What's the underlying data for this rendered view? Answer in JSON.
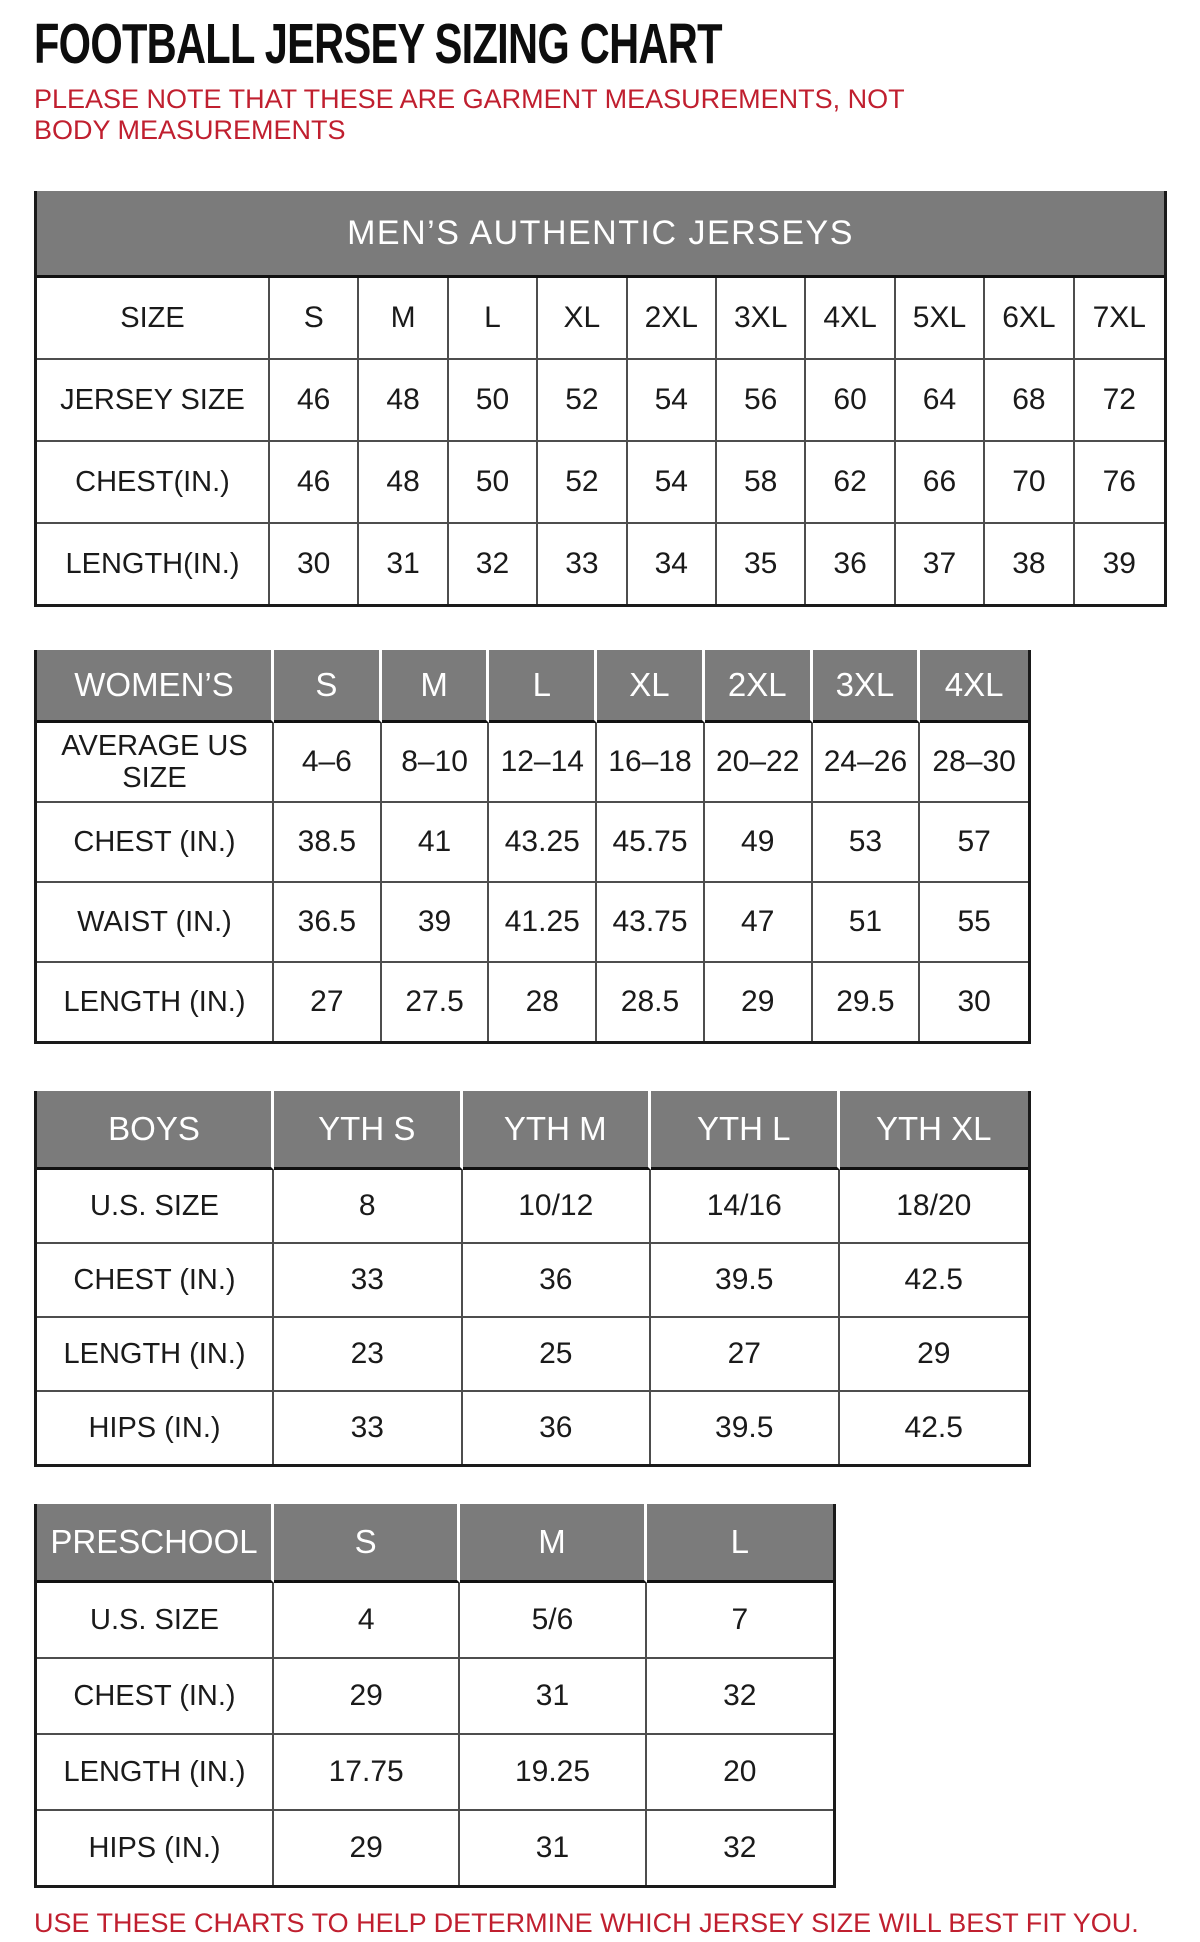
{
  "page": {
    "title": "FOOTBALL JERSEY SIZING CHART",
    "note": "PLEASE NOTE THAT THESE ARE GARMENT MEASUREMENTS, NOT BODY MEASUREMENTS",
    "footer": "USE THESE CHARTS TO HELP DETERMINE WHICH JERSEY SIZE WILL BEST FIT YOU.",
    "colors": {
      "accent_red": "#c01f2f",
      "header_gray": "#7b7b7b",
      "header_text": "#ffffff",
      "border_dark": "#1a1a1a"
    }
  },
  "tables": {
    "mens": {
      "banner": "MEN’S AUTHENTIC JERSEYS",
      "rows": [
        {
          "label": "SIZE",
          "values": [
            "S",
            "M",
            "L",
            "XL",
            "2XL",
            "3XL",
            "4XL",
            "5XL",
            "6XL",
            "7XL"
          ]
        },
        {
          "label": "JERSEY SIZE",
          "values": [
            "46",
            "48",
            "50",
            "52",
            "54",
            "56",
            "60",
            "64",
            "68",
            "72"
          ]
        },
        {
          "label": "CHEST(IN.)",
          "values": [
            "46",
            "48",
            "50",
            "52",
            "54",
            "58",
            "62",
            "66",
            "70",
            "76"
          ]
        },
        {
          "label": "LENGTH(IN.)",
          "values": [
            "30",
            "31",
            "32",
            "33",
            "34",
            "35",
            "36",
            "37",
            "38",
            "39"
          ]
        }
      ]
    },
    "womens": {
      "header": {
        "label": "WOMEN’S",
        "sizes": [
          "S",
          "M",
          "L",
          "XL",
          "2XL",
          "3XL",
          "4XL"
        ]
      },
      "rows": [
        {
          "label": "AVERAGE US SIZE",
          "values": [
            "4–6",
            "8–10",
            "12–14",
            "16–18",
            "20–22",
            "24–26",
            "28–30"
          ]
        },
        {
          "label": "CHEST (IN.)",
          "values": [
            "38.5",
            "41",
            "43.25",
            "45.75",
            "49",
            "53",
            "57"
          ]
        },
        {
          "label": "WAIST (IN.)",
          "values": [
            "36.5",
            "39",
            "41.25",
            "43.75",
            "47",
            "51",
            "55"
          ]
        },
        {
          "label": "LENGTH (IN.)",
          "values": [
            "27",
            "27.5",
            "28",
            "28.5",
            "29",
            "29.5",
            "30"
          ]
        }
      ]
    },
    "boys": {
      "header": {
        "label": "BOYS",
        "sizes": [
          "YTH S",
          "YTH M",
          "YTH L",
          "YTH XL"
        ]
      },
      "rows": [
        {
          "label": "U.S. SIZE",
          "values": [
            "8",
            "10/12",
            "14/16",
            "18/20"
          ]
        },
        {
          "label": "CHEST (IN.)",
          "values": [
            "33",
            "36",
            "39.5",
            "42.5"
          ]
        },
        {
          "label": "LENGTH (IN.)",
          "values": [
            "23",
            "25",
            "27",
            "29"
          ]
        },
        {
          "label": "HIPS (IN.)",
          "values": [
            "33",
            "36",
            "39.5",
            "42.5"
          ]
        }
      ]
    },
    "preschool": {
      "header": {
        "label": "PRESCHOOL",
        "sizes": [
          "S",
          "M",
          "L"
        ]
      },
      "rows": [
        {
          "label": "U.S. SIZE",
          "values": [
            "4",
            "5/6",
            "7"
          ]
        },
        {
          "label": "CHEST (IN.)",
          "values": [
            "29",
            "31",
            "32"
          ]
        },
        {
          "label": "LENGTH (IN.)",
          "values": [
            "17.75",
            "19.25",
            "20"
          ]
        },
        {
          "label": "HIPS (IN.)",
          "values": [
            "29",
            "31",
            "32"
          ]
        }
      ]
    }
  }
}
